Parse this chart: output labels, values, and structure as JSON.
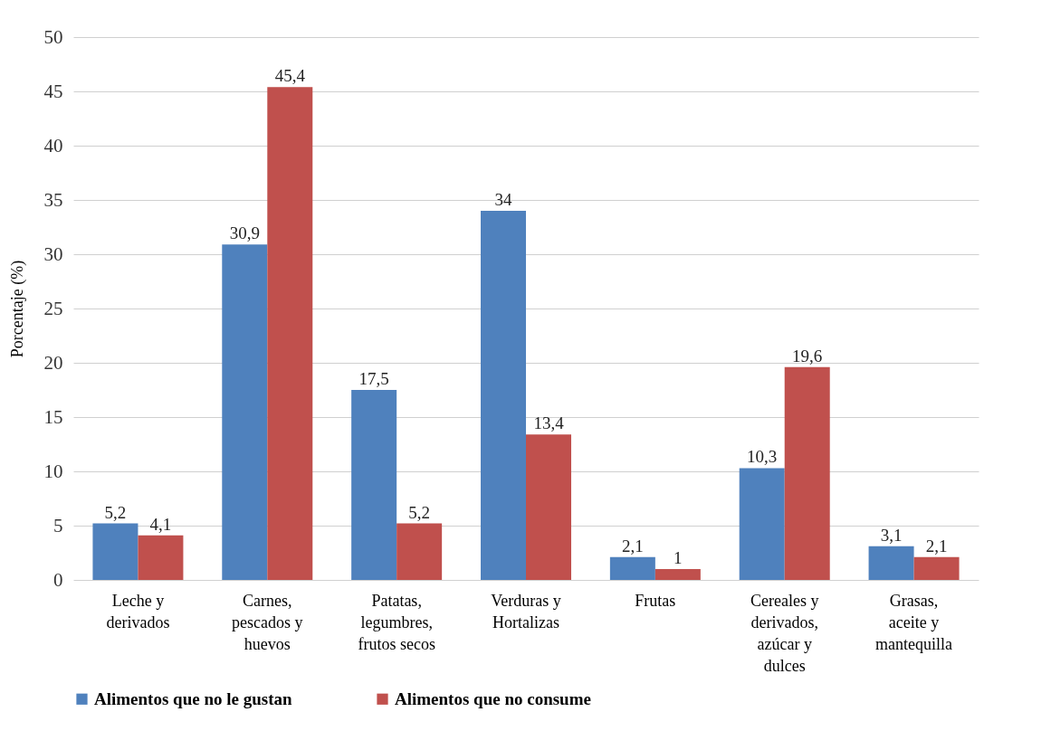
{
  "chart_data": {
    "type": "bar",
    "ylabel": "Porcentaje (%)",
    "categories": [
      "Leche y derivados",
      "Carnes, pescados y huevos",
      "Patatas, legumbres, frutos secos",
      "Verduras y Hortalizas",
      "Frutas",
      "Cereales y derivados, azúcar y dulces",
      "Grasas, aceite y mantequilla"
    ],
    "series": [
      {
        "name": "Alimentos que no le gustan",
        "color": "#4f81bd",
        "values": [
          5.2,
          30.9,
          17.5,
          34,
          2.1,
          10.3,
          3.1
        ],
        "value_labels": [
          "5,2",
          "30,9",
          "17,5",
          "34",
          "2,1",
          "10,3",
          "3,1"
        ]
      },
      {
        "name": "Alimentos que no consume",
        "color": "#c0504d",
        "values": [
          4.1,
          45.4,
          5.2,
          13.4,
          1,
          19.6,
          2.1
        ],
        "value_labels": [
          "4,1",
          "45,4",
          "5,2",
          "13,4",
          "1",
          "19,6",
          "2,1"
        ]
      }
    ],
    "ylim": [
      0,
      50
    ],
    "yticks": [
      0,
      5,
      10,
      15,
      20,
      25,
      30,
      35,
      40,
      45,
      50
    ],
    "grid": "y",
    "legend": "bottom"
  }
}
